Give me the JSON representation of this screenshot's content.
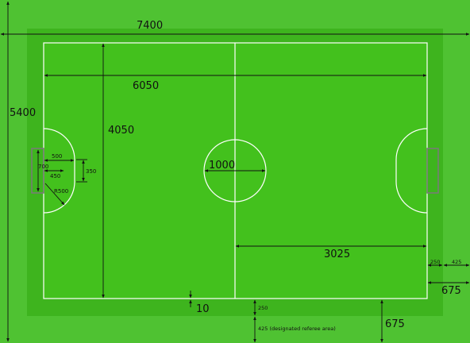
{
  "colors": {
    "outer_area": "#4fc232",
    "run_off": "#3eb41e",
    "pitch": "#43c11d",
    "lines": "#ffffff",
    "dimension_lines": "#111111",
    "goal": "#7a7a7a"
  },
  "dimensions": {
    "overall_width": "7400",
    "overall_height": "5400",
    "pitch_length": "6050",
    "pitch_width": "4050",
    "center_circle": "1000",
    "half_length": "3025",
    "line_width": "10",
    "goal_area_radius": "R500",
    "goal_area_depth": "500",
    "goal_width_outer": "700",
    "goal_width_inner": "450",
    "goal_area_straight": "350",
    "side_run_off": "250",
    "side_referee_area": "425",
    "end_clearance_right": "675",
    "end_clearance_bottom": "675",
    "bottom_run_off": "250",
    "referee_area_note": "425 (designated referee area)"
  }
}
